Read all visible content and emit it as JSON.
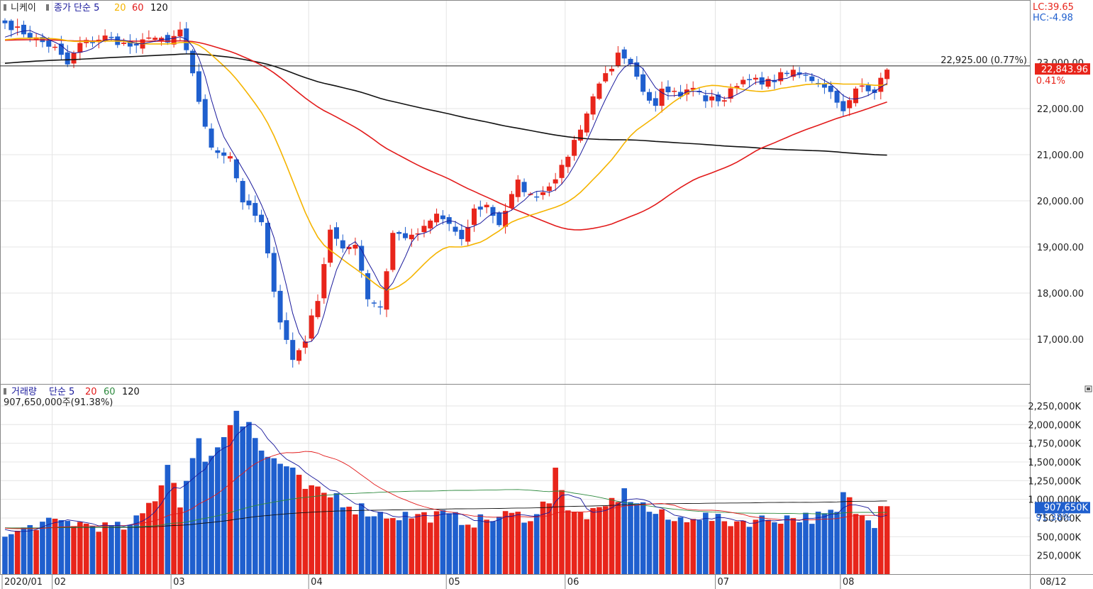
{
  "legend": {
    "symbol": "니케이",
    "price_prefix": "종가 단순 5",
    "ma_periods": [
      "20",
      "60",
      "120"
    ],
    "volume_label": "거래량",
    "volume_ma_prefix": "단순 5",
    "volume_info": "907,650,000주(91.38%)"
  },
  "corner": {
    "lc": "LC:39.65",
    "hc": "HC:-4.98"
  },
  "colors": {
    "up": "#e8251b",
    "down": "#1f5fce",
    "ma5": "#1a1a9c",
    "ma20": "#f5b400",
    "ma60": "#e21a1a",
    "ma120": "#111111",
    "vma60": "#2d8a3e",
    "grid": "#e4e4e4",
    "last_price_bg": "#e8251b",
    "last_vol_bg": "#1f5fce"
  },
  "icons": {
    "collapse": "collapse-icon"
  },
  "reference_price": {
    "label": "22,925.00 (0.77%)",
    "value": 22925
  },
  "last_price": {
    "label": "22,843.96",
    "change": "0.41%",
    "value": 22843.96
  },
  "last_volume": {
    "label": "907,650K",
    "change": "91.38%",
    "value": 907650
  },
  "x_axis": {
    "labels": [
      "2020/01",
      "02",
      "03",
      "04",
      "05",
      "06",
      "07",
      "08"
    ],
    "right_label": "08/12"
  },
  "chart_data": [
    {
      "type": "candlestick",
      "title": "니케이",
      "yticks": [
        17000,
        18000,
        19000,
        20000,
        21000,
        22000,
        23000
      ],
      "ytick_labels": [
        "17,000.00",
        "18,000.00",
        "19,000.00",
        "20,000.00",
        "21,000.00",
        "22,000.00",
        "23,000.00"
      ],
      "ylim": [
        16250,
        23950
      ],
      "series_lines": [
        "5",
        "20",
        "60",
        "120"
      ],
      "anchors": [
        {
          "i": 0,
          "c": 23850
        },
        {
          "i": 8,
          "c": 23300
        },
        {
          "i": 10,
          "c": 22950
        },
        {
          "i": 12,
          "c": 23400
        },
        {
          "i": 16,
          "c": 23550
        },
        {
          "i": 21,
          "c": 23300
        },
        {
          "i": 23,
          "c": 23600
        },
        {
          "i": 26,
          "c": 23400
        },
        {
          "i": 28,
          "c": 23700
        },
        {
          "i": 30,
          "c": 22700
        },
        {
          "i": 33,
          "c": 21100
        },
        {
          "i": 36,
          "c": 21000
        },
        {
          "i": 38,
          "c": 20000
        },
        {
          "i": 41,
          "c": 19500
        },
        {
          "i": 44,
          "c": 17400
        },
        {
          "i": 46,
          "c": 16550
        },
        {
          "i": 48,
          "c": 17000
        },
        {
          "i": 50,
          "c": 17900
        },
        {
          "i": 52,
          "c": 19400
        },
        {
          "i": 54,
          "c": 18900
        },
        {
          "i": 56,
          "c": 19100
        },
        {
          "i": 58,
          "c": 17900
        },
        {
          "i": 60,
          "c": 17700
        },
        {
          "i": 62,
          "c": 19300
        },
        {
          "i": 65,
          "c": 19200
        },
        {
          "i": 67,
          "c": 19400
        },
        {
          "i": 69,
          "c": 19700
        },
        {
          "i": 71,
          "c": 19500
        },
        {
          "i": 73,
          "c": 19100
        },
        {
          "i": 75,
          "c": 19800
        },
        {
          "i": 77,
          "c": 19900
        },
        {
          "i": 79,
          "c": 19500
        },
        {
          "i": 82,
          "c": 20400
        },
        {
          "i": 84,
          "c": 20100
        },
        {
          "i": 86,
          "c": 20200
        },
        {
          "i": 89,
          "c": 20700
        },
        {
          "i": 91,
          "c": 21300
        },
        {
          "i": 93,
          "c": 21900
        },
        {
          "i": 95,
          "c": 22600
        },
        {
          "i": 97,
          "c": 22800
        },
        {
          "i": 98,
          "c": 23150
        },
        {
          "i": 100,
          "c": 22900
        },
        {
          "i": 102,
          "c": 22400
        },
        {
          "i": 104,
          "c": 22100
        },
        {
          "i": 105,
          "c": 22500
        },
        {
          "i": 108,
          "c": 22300
        },
        {
          "i": 110,
          "c": 22450
        },
        {
          "i": 112,
          "c": 22200
        },
        {
          "i": 115,
          "c": 22200
        },
        {
          "i": 117,
          "c": 22550
        },
        {
          "i": 119,
          "c": 22700
        },
        {
          "i": 121,
          "c": 22500
        },
        {
          "i": 123,
          "c": 22650
        },
        {
          "i": 125,
          "c": 22800
        },
        {
          "i": 128,
          "c": 22700
        },
        {
          "i": 131,
          "c": 22500
        },
        {
          "i": 133,
          "c": 22200
        },
        {
          "i": 134,
          "c": 21900
        },
        {
          "i": 136,
          "c": 22400
        },
        {
          "i": 137,
          "c": 22500
        },
        {
          "i": 139,
          "c": 22400
        },
        {
          "i": 140,
          "c": 22600
        },
        {
          "i": 141,
          "c": 22844
        }
      ]
    },
    {
      "type": "bar",
      "title": "거래량",
      "yticks": [
        250000,
        500000,
        750000,
        1000000,
        1250000,
        1500000,
        1750000,
        2000000,
        2250000
      ],
      "ytick_labels": [
        "250,000K",
        "500,000K",
        "750,000K",
        "1,000,000K",
        "1,250,000K",
        "1,500,000K",
        "1,750,000K",
        "2,000,000K",
        "2,250,000K"
      ],
      "ylim": [
        0,
        2400000
      ],
      "series_lines": [
        "5",
        "20",
        "60",
        "120"
      ],
      "anchors": [
        {
          "i": 0,
          "v": 500000
        },
        {
          "i": 5,
          "v": 660000
        },
        {
          "i": 10,
          "v": 700000
        },
        {
          "i": 15,
          "v": 640000
        },
        {
          "i": 20,
          "v": 620000
        },
        {
          "i": 22,
          "v": 800000
        },
        {
          "i": 24,
          "v": 1050000
        },
        {
          "i": 26,
          "v": 1480000
        },
        {
          "i": 28,
          "v": 1000000
        },
        {
          "i": 31,
          "v": 1680000
        },
        {
          "i": 34,
          "v": 1650000
        },
        {
          "i": 37,
          "v": 2300000
        },
        {
          "i": 39,
          "v": 2100000
        },
        {
          "i": 41,
          "v": 1600000
        },
        {
          "i": 44,
          "v": 1500000
        },
        {
          "i": 47,
          "v": 1200000
        },
        {
          "i": 50,
          "v": 1050000
        },
        {
          "i": 53,
          "v": 1050000
        },
        {
          "i": 56,
          "v": 900000
        },
        {
          "i": 60,
          "v": 800000
        },
        {
          "i": 65,
          "v": 780000
        },
        {
          "i": 70,
          "v": 780000
        },
        {
          "i": 75,
          "v": 700000
        },
        {
          "i": 80,
          "v": 780000
        },
        {
          "i": 85,
          "v": 780000
        },
        {
          "i": 87,
          "v": 1050000
        },
        {
          "i": 88,
          "v": 1500000
        },
        {
          "i": 90,
          "v": 800000
        },
        {
          "i": 95,
          "v": 800000
        },
        {
          "i": 98,
          "v": 1050000
        },
        {
          "i": 100,
          "v": 1050000
        },
        {
          "i": 103,
          "v": 850000
        },
        {
          "i": 107,
          "v": 700000
        },
        {
          "i": 110,
          "v": 800000
        },
        {
          "i": 115,
          "v": 700000
        },
        {
          "i": 120,
          "v": 720000
        },
        {
          "i": 125,
          "v": 760000
        },
        {
          "i": 130,
          "v": 760000
        },
        {
          "i": 133,
          "v": 800000
        },
        {
          "i": 134,
          "v": 1050000
        },
        {
          "i": 137,
          "v": 750000
        },
        {
          "i": 139,
          "v": 700000
        },
        {
          "i": 140,
          "v": 1000000
        },
        {
          "i": 141,
          "v": 907650
        }
      ]
    }
  ]
}
